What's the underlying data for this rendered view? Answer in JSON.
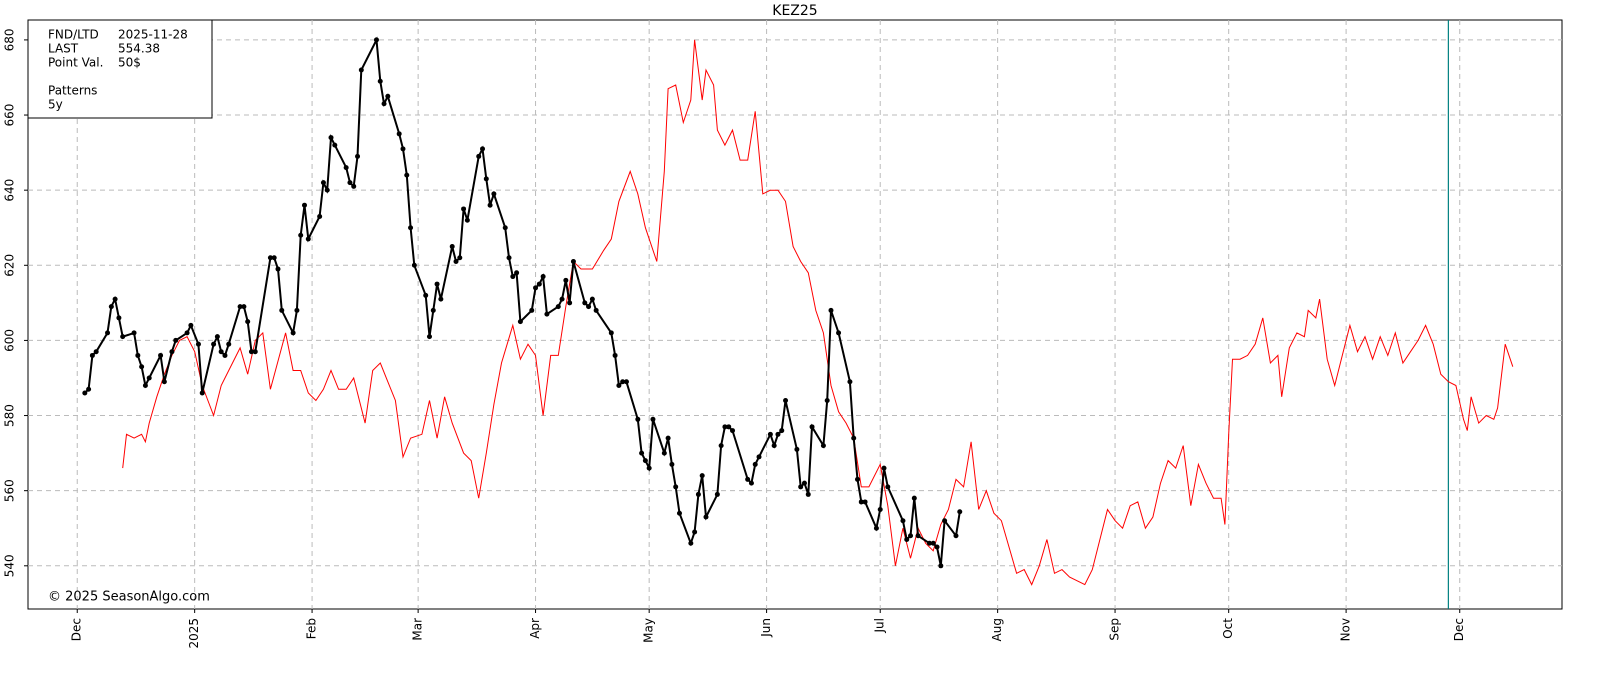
{
  "chart_data": {
    "type": "line",
    "title": "KEZ25",
    "info": [
      {
        "label": "FND/LTD",
        "value": "2025-11-28"
      },
      {
        "label": "LAST",
        "value": "554.38"
      },
      {
        "label": "Point Val.",
        "value": "50$"
      }
    ],
    "legend_title": "Patterns",
    "watermark": "© 2025 SeasonAlgo.com",
    "fnd_color": "#008080",
    "xlim": [
      "2024-11-18",
      "2025-12-28"
    ],
    "ylim": [
      528.5,
      685.3
    ],
    "yticks": [
      540,
      560,
      580,
      600,
      620,
      640,
      660,
      680
    ],
    "xticks": [
      {
        "value": "2024-12-01",
        "label": "Dec"
      },
      {
        "value": "2025-01-01",
        "label": "2025"
      },
      {
        "value": "2025-02-01",
        "label": "Feb"
      },
      {
        "value": "2025-03-01",
        "label": "Mar"
      },
      {
        "value": "2025-04-01",
        "label": "Apr"
      },
      {
        "value": "2025-05-01",
        "label": "May"
      },
      {
        "value": "2025-06-01",
        "label": "Jun"
      },
      {
        "value": "2025-07-01",
        "label": "Jul"
      },
      {
        "value": "2025-08-01",
        "label": "Aug"
      },
      {
        "value": "2025-09-01",
        "label": "Sep"
      },
      {
        "value": "2025-10-01",
        "label": "Oct"
      },
      {
        "value": "2025-11-01",
        "label": "Nov"
      },
      {
        "value": "2025-12-01",
        "label": "Dec"
      }
    ],
    "grid": true,
    "series": [
      {
        "color": "#000000",
        "markers": true,
        "x": [
          "2024-12-03",
          "2024-12-04",
          "2024-12-05",
          "2024-12-06",
          "2024-12-09",
          "2024-12-10",
          "2024-12-11",
          "2024-12-12",
          "2024-12-13",
          "2024-12-16",
          "2024-12-17",
          "2024-12-18",
          "2024-12-19",
          "2024-12-20",
          "2024-12-23",
          "2024-12-24",
          "2024-12-26",
          "2024-12-27",
          "2024-12-30",
          "2024-12-31",
          "2025-01-02",
          "2025-01-03",
          "2025-01-06",
          "2025-01-07",
          "2025-01-08",
          "2025-01-09",
          "2025-01-10",
          "2025-01-13",
          "2025-01-14",
          "2025-01-15",
          "2025-01-16",
          "2025-01-17",
          "2025-01-21",
          "2025-01-22",
          "2025-01-23",
          "2025-01-24",
          "2025-01-27",
          "2025-01-28",
          "2025-01-29",
          "2025-01-30",
          "2025-01-31",
          "2025-02-03",
          "2025-02-04",
          "2025-02-05",
          "2025-02-06",
          "2025-02-07",
          "2025-02-10",
          "2025-02-11",
          "2025-02-12",
          "2025-02-13",
          "2025-02-14",
          "2025-02-18",
          "2025-02-19",
          "2025-02-20",
          "2025-02-21",
          "2025-02-24",
          "2025-02-25",
          "2025-02-26",
          "2025-02-27",
          "2025-02-28",
          "2025-03-03",
          "2025-03-04",
          "2025-03-05",
          "2025-03-06",
          "2025-03-07",
          "2025-03-10",
          "2025-03-11",
          "2025-03-12",
          "2025-03-13",
          "2025-03-14",
          "2025-03-17",
          "2025-03-18",
          "2025-03-19",
          "2025-03-20",
          "2025-03-21",
          "2025-03-24",
          "2025-03-25",
          "2025-03-26",
          "2025-03-27",
          "2025-03-28",
          "2025-03-31",
          "2025-04-01",
          "2025-04-02",
          "2025-04-03",
          "2025-04-04",
          "2025-04-07",
          "2025-04-08",
          "2025-04-09",
          "2025-04-10",
          "2025-04-11",
          "2025-04-14",
          "2025-04-15",
          "2025-04-16",
          "2025-04-17",
          "2025-04-21",
          "2025-04-22",
          "2025-04-23",
          "2025-04-24",
          "2025-04-25",
          "2025-04-28",
          "2025-04-29",
          "2025-04-30",
          "2025-05-01",
          "2025-05-02",
          "2025-05-05",
          "2025-05-06",
          "2025-05-07",
          "2025-05-08",
          "2025-05-09",
          "2025-05-12",
          "2025-05-13",
          "2025-05-14",
          "2025-05-15",
          "2025-05-16",
          "2025-05-19",
          "2025-05-20",
          "2025-05-21",
          "2025-05-22",
          "2025-05-23",
          "2025-05-27",
          "2025-05-28",
          "2025-05-29",
          "2025-05-30",
          "2025-06-02",
          "2025-06-03",
          "2025-06-04",
          "2025-06-05",
          "2025-06-06",
          "2025-06-09",
          "2025-06-10",
          "2025-06-11",
          "2025-06-12",
          "2025-06-13",
          "2025-06-16",
          "2025-06-17",
          "2025-06-18",
          "2025-06-20",
          "2025-06-23",
          "2025-06-24",
          "2025-06-25",
          "2025-06-26",
          "2025-06-27",
          "2025-06-30",
          "2025-07-01",
          "2025-07-02",
          "2025-07-03",
          "2025-07-07",
          "2025-07-08",
          "2025-07-09",
          "2025-07-10",
          "2025-07-11",
          "2025-07-14",
          "2025-07-15",
          "2025-07-16",
          "2025-07-17",
          "2025-07-18",
          "2025-07-21",
          "2025-07-22"
        ],
        "values": [
          586,
          587,
          596,
          597,
          602,
          609,
          611,
          606,
          601,
          602,
          596,
          593,
          588,
          590,
          596,
          589,
          597,
          600,
          602,
          604,
          599,
          586,
          599,
          601,
          597,
          596,
          599,
          609,
          609,
          605,
          597,
          597,
          622,
          622,
          619,
          608,
          602,
          608,
          628,
          636,
          627,
          633,
          642,
          640,
          654,
          652,
          646,
          642,
          641,
          649,
          672,
          680,
          669,
          663,
          665,
          655,
          651,
          644,
          630,
          620,
          612,
          601,
          608,
          615,
          611,
          625,
          621,
          622,
          635,
          632,
          649,
          651,
          643,
          636,
          639,
          630,
          622,
          617,
          618,
          605,
          608,
          614,
          615,
          617,
          607,
          609,
          611,
          616,
          610,
          621,
          610,
          609,
          611,
          608,
          602,
          596,
          588,
          589,
          589,
          579,
          570,
          568,
          566,
          579,
          570,
          574,
          567,
          561,
          554,
          546,
          549,
          559,
          564,
          553,
          559,
          572,
          577,
          577,
          576,
          563,
          562,
          567,
          569,
          575,
          572,
          575,
          576,
          584,
          571,
          561,
          562,
          559,
          577,
          572,
          584,
          608,
          602,
          589,
          574,
          563,
          557,
          557,
          550,
          555,
          566,
          561,
          552,
          547,
          548,
          558,
          548,
          546,
          546,
          545,
          540,
          552,
          548,
          554.38
        ]
      },
      {
        "name": "5y",
        "color": "#ff0000",
        "markers": false,
        "x": [
          "2024-12-13",
          "2024-12-14",
          "2024-12-16",
          "2024-12-18",
          "2024-12-19",
          "2024-12-20",
          "2024-12-22",
          "2024-12-24",
          "2024-12-26",
          "2024-12-28",
          "2024-12-30",
          "2025-01-01",
          "2025-01-03",
          "2025-01-06",
          "2025-01-08",
          "2025-01-11",
          "2025-01-13",
          "2025-01-15",
          "2025-01-17",
          "2025-01-19",
          "2025-01-21",
          "2025-01-25",
          "2025-01-27",
          "2025-01-29",
          "2025-01-31",
          "2025-02-02",
          "2025-02-04",
          "2025-02-06",
          "2025-02-08",
          "2025-02-10",
          "2025-02-12",
          "2025-02-15",
          "2025-02-17",
          "2025-02-19",
          "2025-02-21",
          "2025-02-23",
          "2025-02-25",
          "2025-02-27",
          "2025-03-02",
          "2025-03-04",
          "2025-03-06",
          "2025-03-08",
          "2025-03-10",
          "2025-03-13",
          "2025-03-15",
          "2025-03-17",
          "2025-03-19",
          "2025-03-21",
          "2025-03-23",
          "2025-03-26",
          "2025-03-28",
          "2025-03-30",
          "2025-04-01",
          "2025-04-03",
          "2025-04-05",
          "2025-04-07",
          "2025-04-09",
          "2025-04-11",
          "2025-04-13",
          "2025-04-16",
          "2025-04-19",
          "2025-04-21",
          "2025-04-23",
          "2025-04-26",
          "2025-04-28",
          "2025-04-30",
          "2025-05-03",
          "2025-05-05",
          "2025-05-06",
          "2025-05-08",
          "2025-05-10",
          "2025-05-12",
          "2025-05-13",
          "2025-05-15",
          "2025-05-16",
          "2025-05-18",
          "2025-05-19",
          "2025-05-21",
          "2025-05-23",
          "2025-05-25",
          "2025-05-27",
          "2025-05-29",
          "2025-05-31",
          "2025-06-02",
          "2025-06-04",
          "2025-06-06",
          "2025-06-08",
          "2025-06-10",
          "2025-06-12",
          "2025-06-14",
          "2025-06-16",
          "2025-06-18",
          "2025-06-20",
          "2025-06-22",
          "2025-06-24",
          "2025-06-26",
          "2025-06-28",
          "2025-07-01",
          "2025-07-03",
          "2025-07-05",
          "2025-07-07",
          "2025-07-09",
          "2025-07-11",
          "2025-07-13",
          "2025-07-15",
          "2025-07-17",
          "2025-07-19",
          "2025-07-21",
          "2025-07-23",
          "2025-07-25",
          "2025-07-27",
          "2025-07-29",
          "2025-07-31",
          "2025-08-02",
          "2025-08-04",
          "2025-08-06",
          "2025-08-08",
          "2025-08-10",
          "2025-08-12",
          "2025-08-14",
          "2025-08-16",
          "2025-08-18",
          "2025-08-20",
          "2025-08-22",
          "2025-08-24",
          "2025-08-26",
          "2025-08-28",
          "2025-08-30",
          "2025-09-01",
          "2025-09-03",
          "2025-09-05",
          "2025-09-07",
          "2025-09-09",
          "2025-09-11",
          "2025-09-13",
          "2025-09-15",
          "2025-09-17",
          "2025-09-19",
          "2025-09-21",
          "2025-09-23",
          "2025-09-25",
          "2025-09-27",
          "2025-09-29",
          "2025-09-30",
          "2025-10-01",
          "2025-10-02",
          "2025-10-04",
          "2025-10-06",
          "2025-10-08",
          "2025-10-10",
          "2025-10-12",
          "2025-10-14",
          "2025-10-15",
          "2025-10-17",
          "2025-10-19",
          "2025-10-21",
          "2025-10-22",
          "2025-10-24",
          "2025-10-25",
          "2025-10-27",
          "2025-10-29",
          "2025-10-31",
          "2025-11-02",
          "2025-11-04",
          "2025-11-06",
          "2025-11-08",
          "2025-11-10",
          "2025-11-12",
          "2025-11-14",
          "2025-11-16",
          "2025-11-18",
          "2025-11-20",
          "2025-11-22",
          "2025-11-24",
          "2025-11-26",
          "2025-11-28",
          "2025-11-30",
          "2025-12-02",
          "2025-12-03",
          "2025-12-04",
          "2025-12-06",
          "2025-12-08",
          "2025-12-10",
          "2025-12-11",
          "2025-12-13",
          "2025-12-15"
        ],
        "values": [
          566,
          575,
          574,
          575,
          573,
          578,
          585,
          591,
          596,
          600,
          601,
          597,
          588,
          580,
          588,
          594,
          598,
          591,
          600,
          602,
          587,
          602,
          592,
          592,
          586,
          584,
          587,
          592,
          587,
          587,
          590,
          578,
          592,
          594,
          589,
          584,
          569,
          574,
          575,
          584,
          574,
          585,
          578,
          570,
          568,
          558,
          570,
          583,
          594,
          604,
          595,
          599,
          596,
          580,
          596,
          596,
          609,
          621,
          619,
          619,
          624,
          627,
          637,
          645,
          639,
          630,
          621,
          645,
          667,
          668,
          658,
          664,
          680,
          664,
          672,
          668,
          656,
          652,
          656,
          648,
          648,
          661,
          639,
          640,
          640,
          637,
          625,
          621,
          618,
          608,
          602,
          588,
          581,
          578,
          574,
          561,
          561,
          567,
          556,
          540,
          550,
          542,
          550,
          546,
          544,
          551,
          555,
          563,
          561,
          573,
          555,
          560,
          554,
          552,
          545,
          538,
          539,
          535,
          540,
          547,
          538,
          539,
          537,
          536,
          535,
          539,
          547,
          555,
          552,
          550,
          556,
          557,
          550,
          553,
          562,
          568,
          566,
          572,
          556,
          567,
          562,
          558,
          558,
          551,
          575,
          595,
          595,
          596,
          599,
          606,
          594,
          596,
          585,
          598,
          602,
          601,
          608,
          606,
          611,
          595,
          588,
          596,
          604,
          597,
          601,
          595,
          601,
          596,
          602,
          594,
          597,
          600,
          604,
          599,
          591,
          589,
          588,
          579,
          576,
          585,
          578,
          580,
          579,
          582,
          599,
          593
        ]
      }
    ]
  }
}
